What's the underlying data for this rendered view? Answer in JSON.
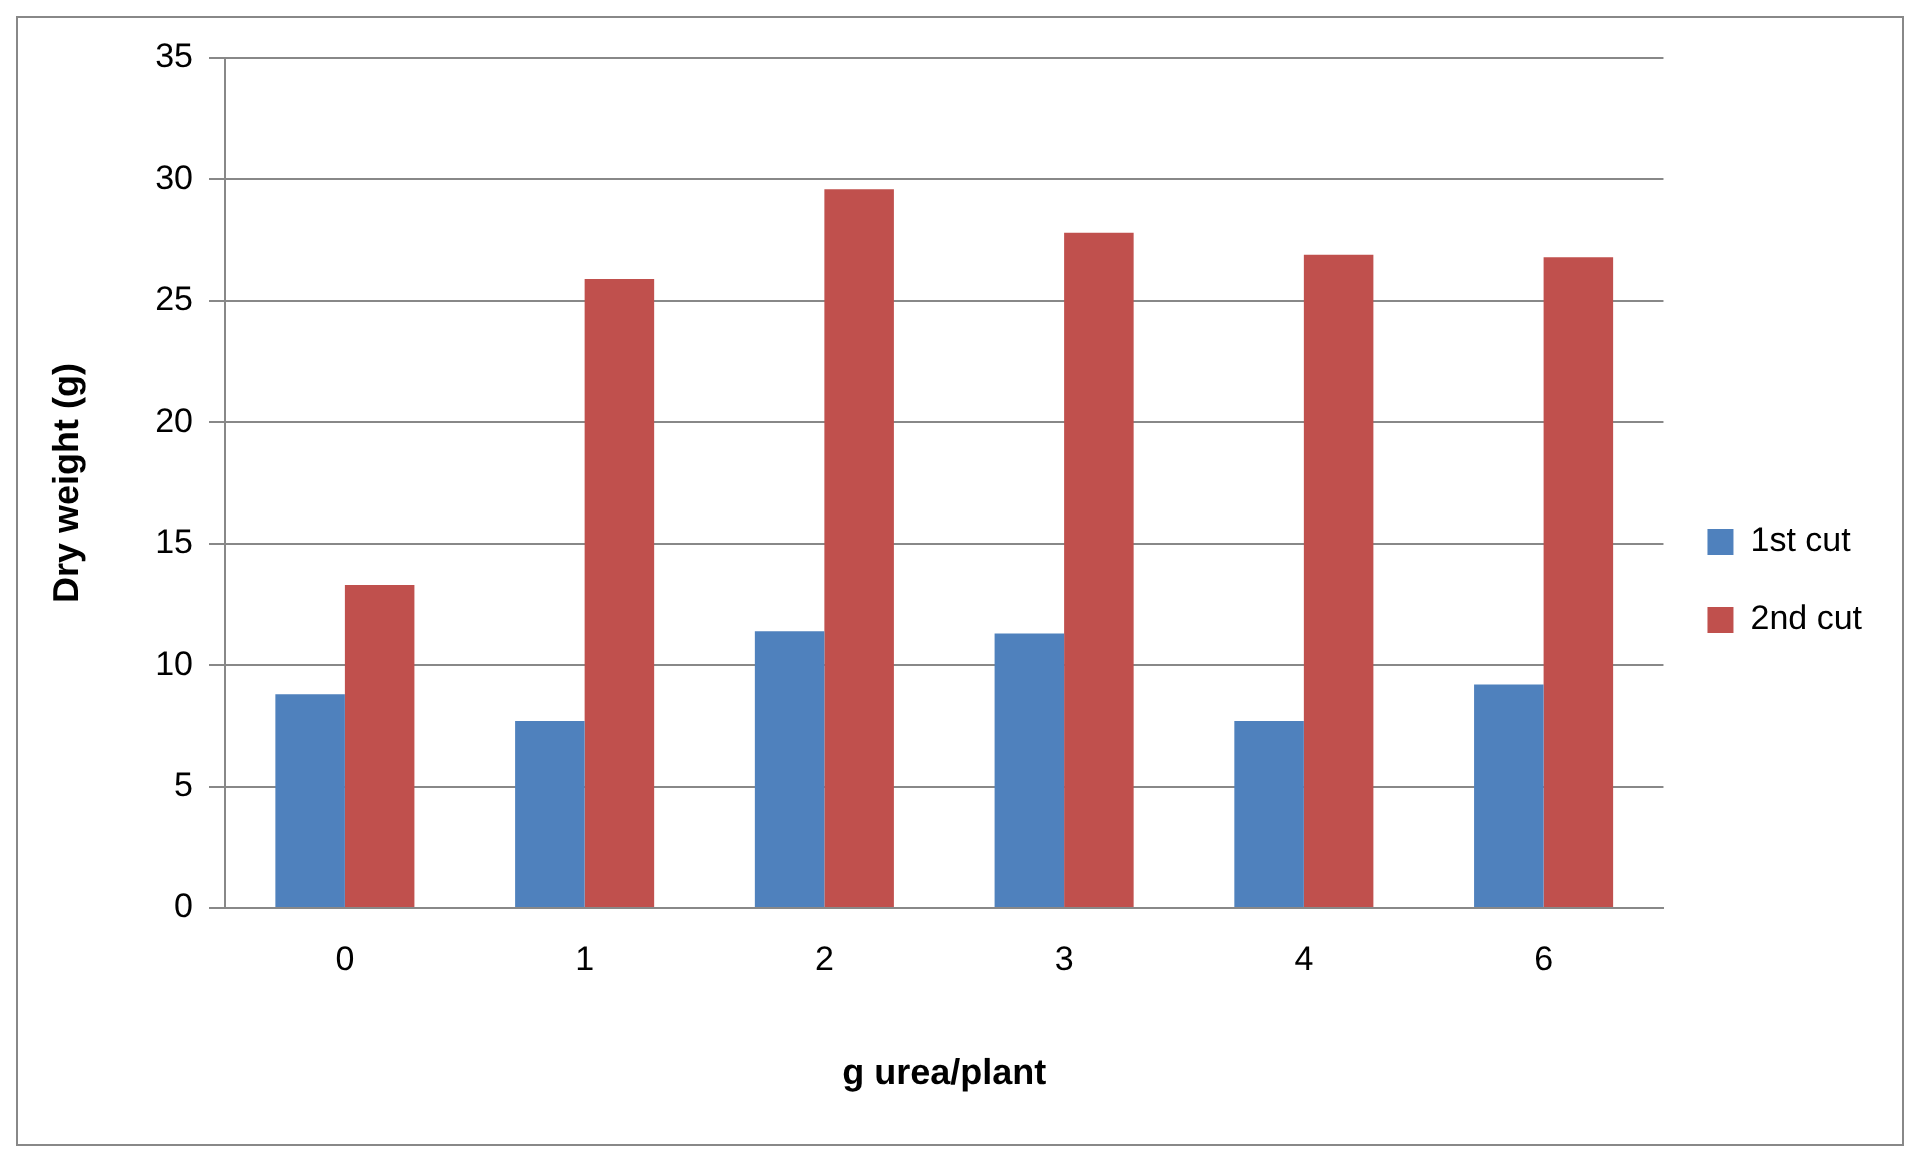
{
  "chart_data": {
    "type": "bar",
    "xlabel": "g urea/plant",
    "ylabel": "Dry weight (g)",
    "categories": [
      "0",
      "1",
      "2",
      "3",
      "4",
      "6"
    ],
    "series": [
      {
        "name": "1st cut",
        "color": "#4f81bd",
        "values": [
          8.8,
          7.7,
          11.4,
          11.3,
          7.7,
          9.2
        ]
      },
      {
        "name": "2nd cut",
        "color": "#c0504d",
        "values": [
          13.3,
          25.9,
          29.6,
          27.8,
          26.9,
          26.8
        ]
      }
    ],
    "ylim": [
      0,
      35
    ],
    "yticks": [
      0,
      5,
      10,
      15,
      20,
      25,
      30,
      35
    ],
    "grid": "y",
    "legend": "right"
  }
}
